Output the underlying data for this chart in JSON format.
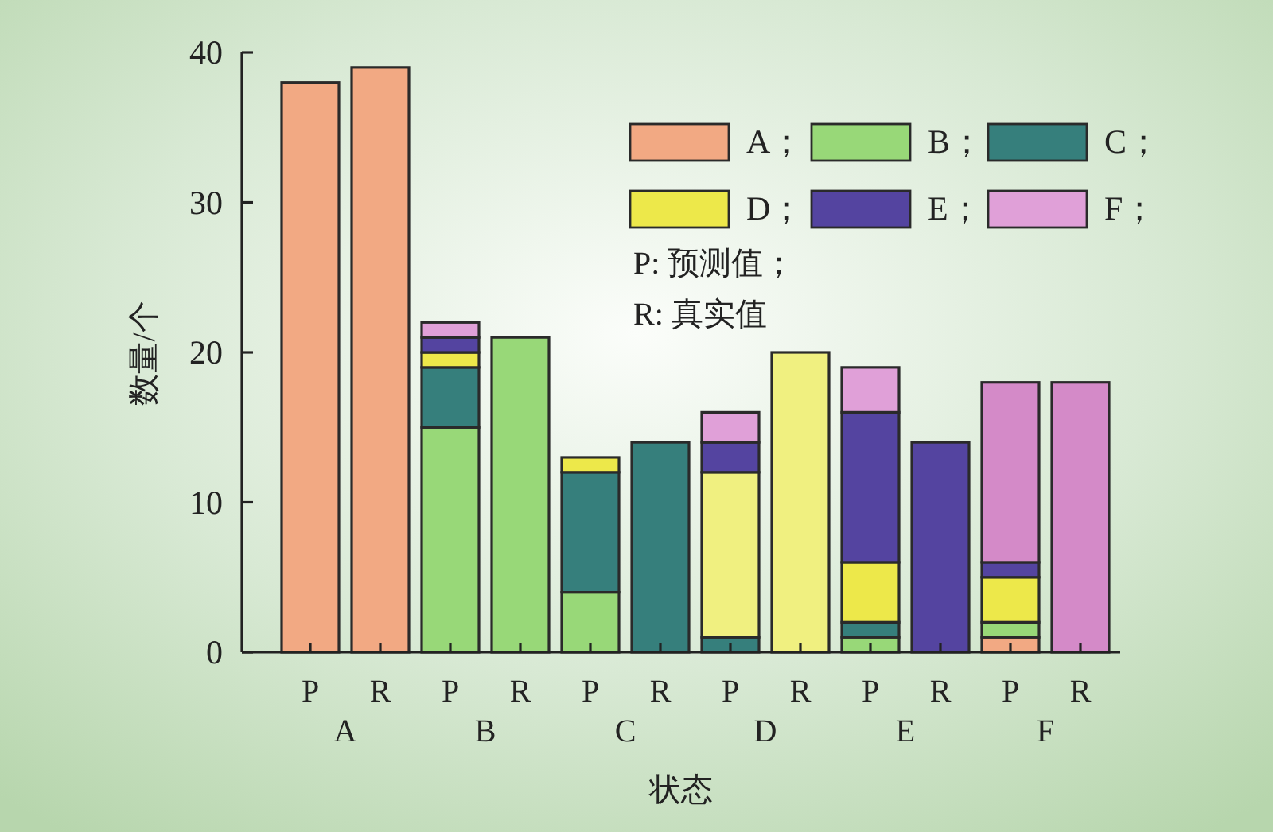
{
  "chart_data": {
    "type": "bar",
    "stacked": true,
    "xlabel": "状态",
    "ylabel": "数量/个",
    "categories": [
      "P",
      "R",
      "P",
      "R",
      "P",
      "R",
      "P",
      "R",
      "P",
      "R",
      "P",
      "R"
    ],
    "ylim": [
      0,
      40
    ],
    "yticks": [
      0,
      10,
      20,
      30,
      40
    ],
    "legend": "top right",
    "series": [
      {
        "name": "A；",
        "color": "#f2a983",
        "values": [
          38,
          39,
          null,
          null,
          null,
          null,
          null,
          null,
          null,
          null,
          1,
          null
        ]
      },
      {
        "name": "B；",
        "color": "#98d878",
        "values": [
          null,
          null,
          15,
          21,
          4,
          null,
          null,
          null,
          1,
          null,
          1,
          null
        ]
      },
      {
        "name": "C；",
        "color": "#367f7c",
        "values": [
          null,
          null,
          4,
          null,
          8,
          14,
          1,
          null,
          1,
          null,
          null,
          null
        ]
      },
      {
        "name": "D；",
        "color": "#ede84a",
        "colors": [
          null,
          null,
          "#ede84a",
          null,
          "#ede84a",
          null,
          "#f0f080",
          "#f0f080",
          "#ede84a",
          null,
          "#ede84a",
          null
        ],
        "values": [
          null,
          null,
          1,
          null,
          1,
          null,
          11,
          20,
          4,
          null,
          3,
          null
        ]
      },
      {
        "name": "E；",
        "color": "#5444a0",
        "values": [
          null,
          null,
          1,
          null,
          null,
          null,
          2,
          null,
          10,
          14,
          1,
          null
        ]
      },
      {
        "name": "F；",
        "color": "#e0a0d8",
        "colors": [
          null,
          null,
          "#e0a0d8",
          null,
          null,
          null,
          "#e0a0d8",
          null,
          "#e0a0d8",
          null,
          "#d48ac8",
          "#d48ac8"
        ],
        "values": [
          null,
          null,
          1,
          null,
          null,
          null,
          2,
          null,
          3,
          null,
          12,
          18
        ]
      }
    ],
    "annotations": [
      "P: 预测值；",
      "R: 真实值",
      "A",
      "B",
      "C",
      "D",
      "E",
      "F"
    ]
  }
}
